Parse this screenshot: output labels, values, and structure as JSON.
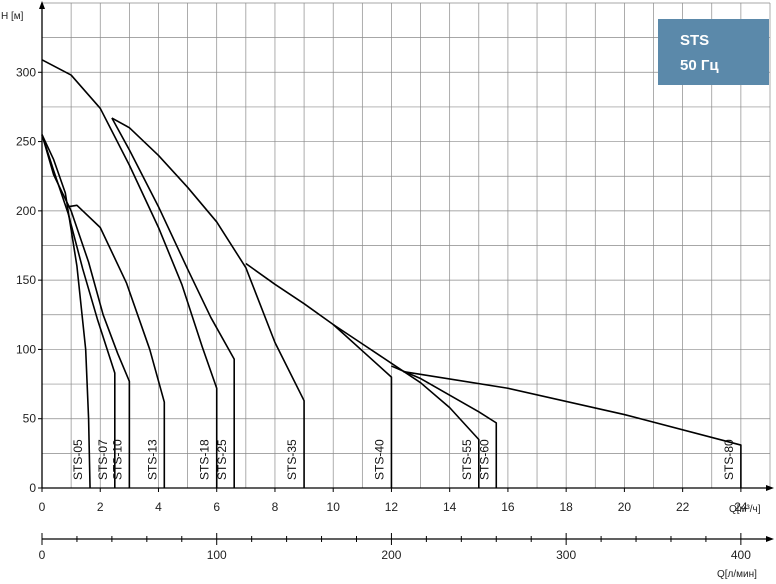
{
  "badge": {
    "line1": "STS",
    "line2": "50 Гц",
    "color": "#5b89aa"
  },
  "colors": {
    "grid": "#8a8a8a",
    "curve": "#000000",
    "axis": "#000000"
  },
  "chart_data": {
    "type": "line",
    "ylabel": "H [м]",
    "xlabel": "Q[м³/ч]",
    "xlabel2": "Q[л/мин]",
    "xlim": [
      0,
      25
    ],
    "ylim": [
      0,
      350
    ],
    "x_ticks": [
      0,
      2,
      4,
      6,
      8,
      10,
      12,
      14,
      16,
      18,
      20,
      22,
      24
    ],
    "y_ticks": [
      0,
      50,
      100,
      150,
      200,
      250,
      300
    ],
    "x2_ticks": [
      0,
      100,
      200,
      300,
      400
    ],
    "x2_per_x": 16.667,
    "grid": true,
    "series": [
      {
        "name": "STS-05",
        "points": [
          [
            0,
            255
          ],
          [
            0.4,
            237
          ],
          [
            0.8,
            213
          ],
          [
            1.2,
            160
          ],
          [
            1.5,
            100
          ],
          [
            1.6,
            50
          ],
          [
            1.65,
            0
          ]
        ]
      },
      {
        "name": "STS-07",
        "points": [
          [
            0,
            255
          ],
          [
            0.4,
            229
          ],
          [
            0.9,
            198
          ],
          [
            1.4,
            158
          ],
          [
            1.9,
            122
          ],
          [
            2.3,
            96
          ],
          [
            2.5,
            83
          ],
          [
            2.5,
            0
          ]
        ]
      },
      {
        "name": "STS-10",
        "points": [
          [
            0,
            255
          ],
          [
            0.4,
            226
          ],
          [
            1.0,
            200
          ],
          [
            1.6,
            163
          ],
          [
            2.1,
            125
          ],
          [
            2.6,
            97
          ],
          [
            3.0,
            77
          ],
          [
            3.0,
            60
          ],
          [
            3.0,
            0
          ]
        ]
      },
      {
        "name": "STS-13",
        "points": [
          [
            0.9,
            203
          ],
          [
            1.2,
            204
          ],
          [
            2.0,
            188
          ],
          [
            2.9,
            148
          ],
          [
            3.7,
            100
          ],
          [
            4.2,
            62
          ],
          [
            4.2,
            0
          ]
        ]
      },
      {
        "name": "STS-18",
        "points": [
          [
            0,
            309
          ],
          [
            1,
            298
          ],
          [
            2,
            274
          ],
          [
            3,
            233
          ],
          [
            4,
            188
          ],
          [
            4.8,
            147
          ],
          [
            5.5,
            102
          ],
          [
            6.0,
            72
          ],
          [
            6.0,
            0
          ]
        ]
      },
      {
        "name": "STS-25",
        "points": [
          [
            2.4,
            267
          ],
          [
            3,
            244
          ],
          [
            4,
            203
          ],
          [
            5,
            158
          ],
          [
            5.8,
            123
          ],
          [
            6.6,
            93
          ],
          [
            6.6,
            0
          ]
        ]
      },
      {
        "name": "STS-35",
        "points": [
          [
            2.4,
            267
          ],
          [
            3,
            260
          ],
          [
            4,
            240
          ],
          [
            5,
            217
          ],
          [
            6,
            192
          ],
          [
            7,
            159
          ],
          [
            8,
            105
          ],
          [
            9,
            63
          ],
          [
            9,
            0
          ]
        ]
      },
      {
        "name": "STS-40",
        "points": [
          [
            7,
            162
          ],
          [
            8,
            147
          ],
          [
            9,
            133
          ],
          [
            10,
            118
          ],
          [
            11,
            99
          ],
          [
            12,
            80
          ],
          [
            12,
            0
          ]
        ]
      },
      {
        "name": "STS-55",
        "points": [
          [
            10,
            118
          ],
          [
            11,
            104
          ],
          [
            12,
            90
          ],
          [
            13,
            76
          ],
          [
            14,
            58
          ],
          [
            15,
            35
          ],
          [
            15,
            0
          ]
        ]
      },
      {
        "name": "STS-60",
        "points": [
          [
            12,
            88
          ],
          [
            13,
            79
          ],
          [
            14,
            67
          ],
          [
            15,
            55
          ],
          [
            15.6,
            47
          ],
          [
            15.6,
            0
          ]
        ]
      },
      {
        "name": "STS-80",
        "points": [
          [
            12.4,
            84
          ],
          [
            16,
            72
          ],
          [
            20,
            53
          ],
          [
            24,
            31
          ],
          [
            24,
            0
          ]
        ]
      }
    ]
  }
}
